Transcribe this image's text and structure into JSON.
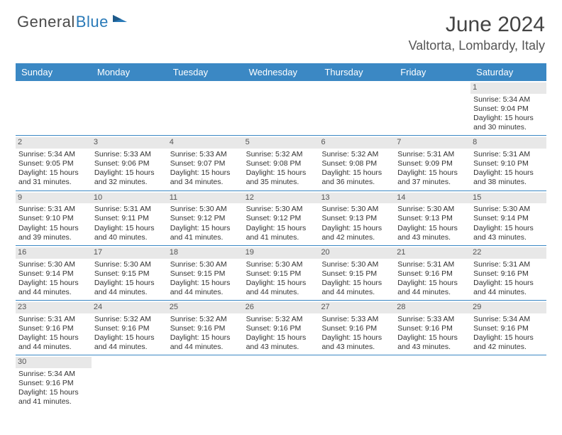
{
  "logo": {
    "text1": "General",
    "text2": "Blue"
  },
  "title": "June 2024",
  "location": "Valtorta, Lombardy, Italy",
  "colors": {
    "header_bg": "#3b88c4",
    "header_text": "#ffffff",
    "row_border": "#3b88c4",
    "daynum_bg": "#e8e8e8",
    "body_text": "#333333",
    "logo_gray": "#4a4a4a",
    "logo_blue": "#2a7ab8"
  },
  "day_headers": [
    "Sunday",
    "Monday",
    "Tuesday",
    "Wednesday",
    "Thursday",
    "Friday",
    "Saturday"
  ],
  "weeks": [
    [
      {
        "day": ""
      },
      {
        "day": ""
      },
      {
        "day": ""
      },
      {
        "day": ""
      },
      {
        "day": ""
      },
      {
        "day": ""
      },
      {
        "day": "1",
        "sunrise": "Sunrise: 5:34 AM",
        "sunset": "Sunset: 9:04 PM",
        "dl1": "Daylight: 15 hours",
        "dl2": "and 30 minutes."
      }
    ],
    [
      {
        "day": "2",
        "sunrise": "Sunrise: 5:34 AM",
        "sunset": "Sunset: 9:05 PM",
        "dl1": "Daylight: 15 hours",
        "dl2": "and 31 minutes."
      },
      {
        "day": "3",
        "sunrise": "Sunrise: 5:33 AM",
        "sunset": "Sunset: 9:06 PM",
        "dl1": "Daylight: 15 hours",
        "dl2": "and 32 minutes."
      },
      {
        "day": "4",
        "sunrise": "Sunrise: 5:33 AM",
        "sunset": "Sunset: 9:07 PM",
        "dl1": "Daylight: 15 hours",
        "dl2": "and 34 minutes."
      },
      {
        "day": "5",
        "sunrise": "Sunrise: 5:32 AM",
        "sunset": "Sunset: 9:08 PM",
        "dl1": "Daylight: 15 hours",
        "dl2": "and 35 minutes."
      },
      {
        "day": "6",
        "sunrise": "Sunrise: 5:32 AM",
        "sunset": "Sunset: 9:08 PM",
        "dl1": "Daylight: 15 hours",
        "dl2": "and 36 minutes."
      },
      {
        "day": "7",
        "sunrise": "Sunrise: 5:31 AM",
        "sunset": "Sunset: 9:09 PM",
        "dl1": "Daylight: 15 hours",
        "dl2": "and 37 minutes."
      },
      {
        "day": "8",
        "sunrise": "Sunrise: 5:31 AM",
        "sunset": "Sunset: 9:10 PM",
        "dl1": "Daylight: 15 hours",
        "dl2": "and 38 minutes."
      }
    ],
    [
      {
        "day": "9",
        "sunrise": "Sunrise: 5:31 AM",
        "sunset": "Sunset: 9:10 PM",
        "dl1": "Daylight: 15 hours",
        "dl2": "and 39 minutes."
      },
      {
        "day": "10",
        "sunrise": "Sunrise: 5:31 AM",
        "sunset": "Sunset: 9:11 PM",
        "dl1": "Daylight: 15 hours",
        "dl2": "and 40 minutes."
      },
      {
        "day": "11",
        "sunrise": "Sunrise: 5:30 AM",
        "sunset": "Sunset: 9:12 PM",
        "dl1": "Daylight: 15 hours",
        "dl2": "and 41 minutes."
      },
      {
        "day": "12",
        "sunrise": "Sunrise: 5:30 AM",
        "sunset": "Sunset: 9:12 PM",
        "dl1": "Daylight: 15 hours",
        "dl2": "and 41 minutes."
      },
      {
        "day": "13",
        "sunrise": "Sunrise: 5:30 AM",
        "sunset": "Sunset: 9:13 PM",
        "dl1": "Daylight: 15 hours",
        "dl2": "and 42 minutes."
      },
      {
        "day": "14",
        "sunrise": "Sunrise: 5:30 AM",
        "sunset": "Sunset: 9:13 PM",
        "dl1": "Daylight: 15 hours",
        "dl2": "and 43 minutes."
      },
      {
        "day": "15",
        "sunrise": "Sunrise: 5:30 AM",
        "sunset": "Sunset: 9:14 PM",
        "dl1": "Daylight: 15 hours",
        "dl2": "and 43 minutes."
      }
    ],
    [
      {
        "day": "16",
        "sunrise": "Sunrise: 5:30 AM",
        "sunset": "Sunset: 9:14 PM",
        "dl1": "Daylight: 15 hours",
        "dl2": "and 44 minutes."
      },
      {
        "day": "17",
        "sunrise": "Sunrise: 5:30 AM",
        "sunset": "Sunset: 9:15 PM",
        "dl1": "Daylight: 15 hours",
        "dl2": "and 44 minutes."
      },
      {
        "day": "18",
        "sunrise": "Sunrise: 5:30 AM",
        "sunset": "Sunset: 9:15 PM",
        "dl1": "Daylight: 15 hours",
        "dl2": "and 44 minutes."
      },
      {
        "day": "19",
        "sunrise": "Sunrise: 5:30 AM",
        "sunset": "Sunset: 9:15 PM",
        "dl1": "Daylight: 15 hours",
        "dl2": "and 44 minutes."
      },
      {
        "day": "20",
        "sunrise": "Sunrise: 5:30 AM",
        "sunset": "Sunset: 9:15 PM",
        "dl1": "Daylight: 15 hours",
        "dl2": "and 44 minutes."
      },
      {
        "day": "21",
        "sunrise": "Sunrise: 5:31 AM",
        "sunset": "Sunset: 9:16 PM",
        "dl1": "Daylight: 15 hours",
        "dl2": "and 44 minutes."
      },
      {
        "day": "22",
        "sunrise": "Sunrise: 5:31 AM",
        "sunset": "Sunset: 9:16 PM",
        "dl1": "Daylight: 15 hours",
        "dl2": "and 44 minutes."
      }
    ],
    [
      {
        "day": "23",
        "sunrise": "Sunrise: 5:31 AM",
        "sunset": "Sunset: 9:16 PM",
        "dl1": "Daylight: 15 hours",
        "dl2": "and 44 minutes."
      },
      {
        "day": "24",
        "sunrise": "Sunrise: 5:32 AM",
        "sunset": "Sunset: 9:16 PM",
        "dl1": "Daylight: 15 hours",
        "dl2": "and 44 minutes."
      },
      {
        "day": "25",
        "sunrise": "Sunrise: 5:32 AM",
        "sunset": "Sunset: 9:16 PM",
        "dl1": "Daylight: 15 hours",
        "dl2": "and 44 minutes."
      },
      {
        "day": "26",
        "sunrise": "Sunrise: 5:32 AM",
        "sunset": "Sunset: 9:16 PM",
        "dl1": "Daylight: 15 hours",
        "dl2": "and 43 minutes."
      },
      {
        "day": "27",
        "sunrise": "Sunrise: 5:33 AM",
        "sunset": "Sunset: 9:16 PM",
        "dl1": "Daylight: 15 hours",
        "dl2": "and 43 minutes."
      },
      {
        "day": "28",
        "sunrise": "Sunrise: 5:33 AM",
        "sunset": "Sunset: 9:16 PM",
        "dl1": "Daylight: 15 hours",
        "dl2": "and 43 minutes."
      },
      {
        "day": "29",
        "sunrise": "Sunrise: 5:34 AM",
        "sunset": "Sunset: 9:16 PM",
        "dl1": "Daylight: 15 hours",
        "dl2": "and 42 minutes."
      }
    ],
    [
      {
        "day": "30",
        "sunrise": "Sunrise: 5:34 AM",
        "sunset": "Sunset: 9:16 PM",
        "dl1": "Daylight: 15 hours",
        "dl2": "and 41 minutes."
      },
      {
        "day": ""
      },
      {
        "day": ""
      },
      {
        "day": ""
      },
      {
        "day": ""
      },
      {
        "day": ""
      },
      {
        "day": ""
      }
    ]
  ]
}
